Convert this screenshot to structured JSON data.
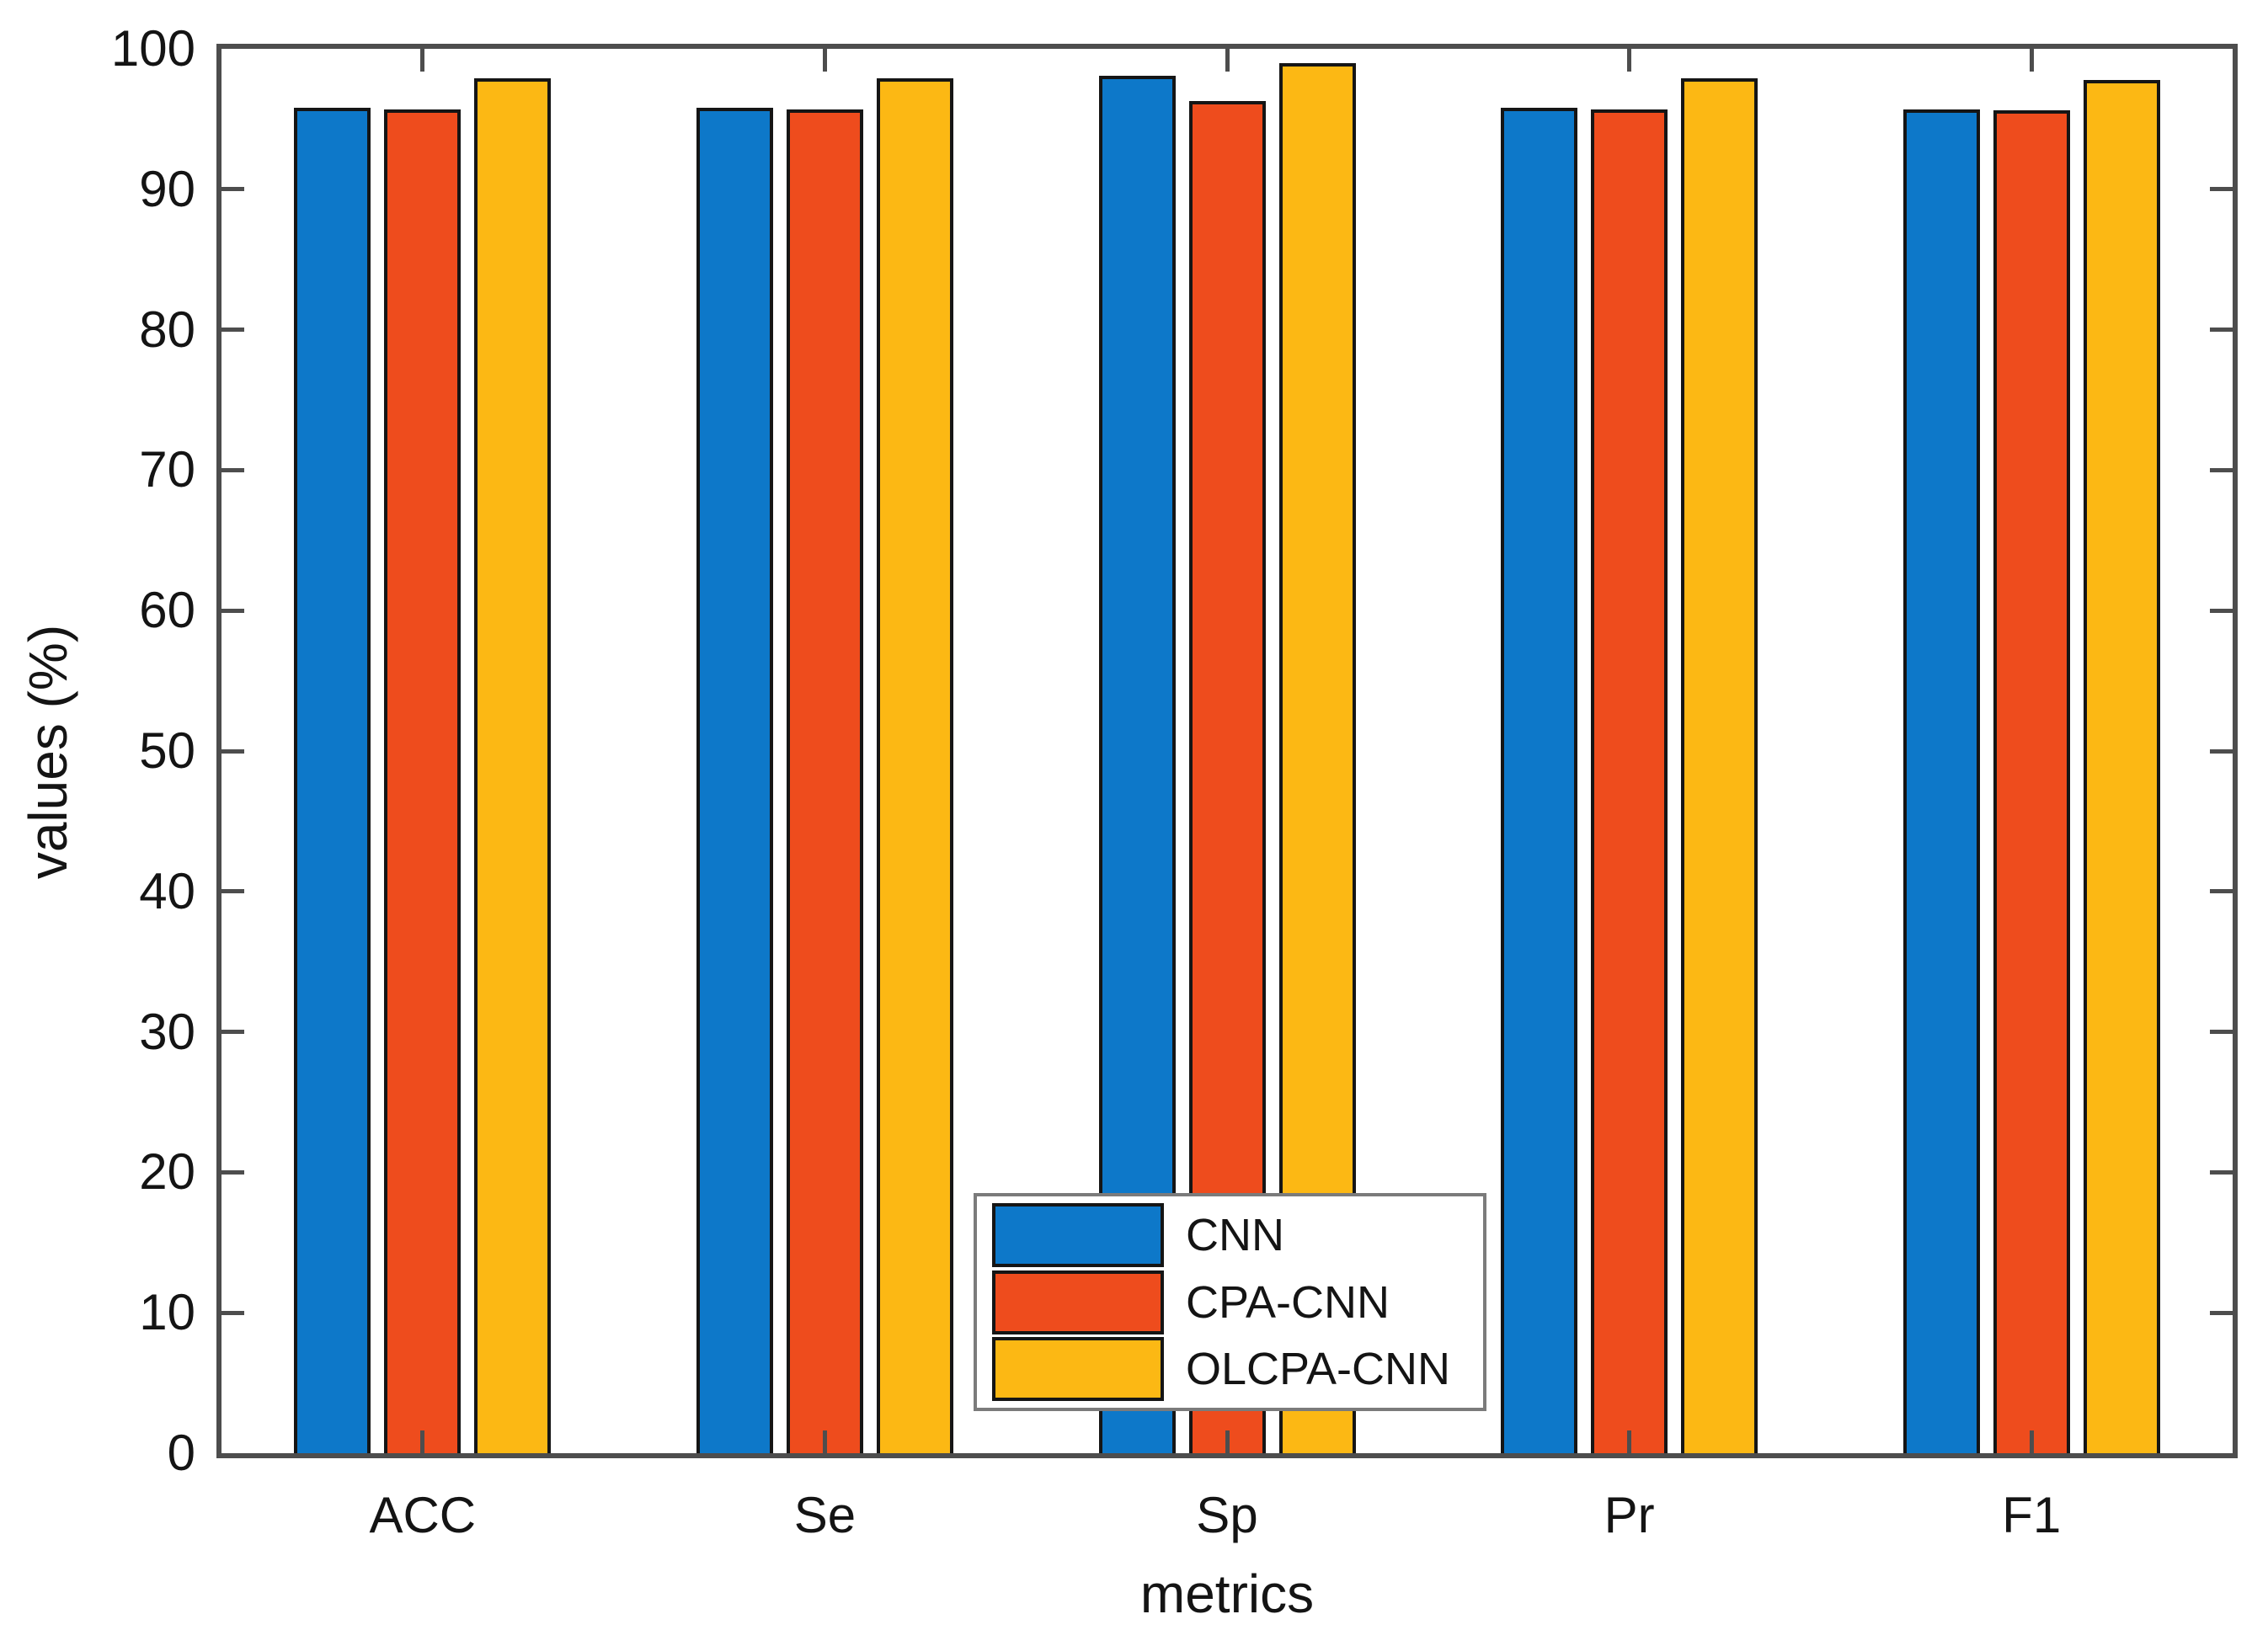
{
  "figure": {
    "background": "#ffffff",
    "axis_color": "#4d4d4d",
    "text_color": "#141414",
    "bar_border_color": "#151515",
    "legend_border_color": "#7b7b7b"
  },
  "chart_data": {
    "type": "bar",
    "title": "",
    "xlabel": "metrics",
    "ylabel": "values (%)",
    "categories": [
      "ACC",
      "Se",
      "Sp",
      "Pr",
      "F1"
    ],
    "series": [
      {
        "name": "CNN",
        "color": "#0d78c9",
        "values": [
          95.8,
          95.8,
          98.1,
          95.8,
          95.7
        ]
      },
      {
        "name": "CPA-CNN",
        "color": "#ee4c1d",
        "values": [
          95.7,
          95.7,
          96.3,
          95.7,
          95.6
        ]
      },
      {
        "name": "OLCPA-CNN",
        "color": "#fcb814",
        "values": [
          97.9,
          97.9,
          99.0,
          97.9,
          97.8
        ]
      }
    ],
    "ylim": [
      0,
      100
    ],
    "yticks": [
      0,
      10,
      20,
      30,
      40,
      50,
      60,
      70,
      80,
      90,
      100
    ],
    "grid": false,
    "legend_position": "inside-bottom-center",
    "legend_entries": [
      "CNN",
      "CPA-CNN",
      "OLCPA-CNN"
    ]
  }
}
